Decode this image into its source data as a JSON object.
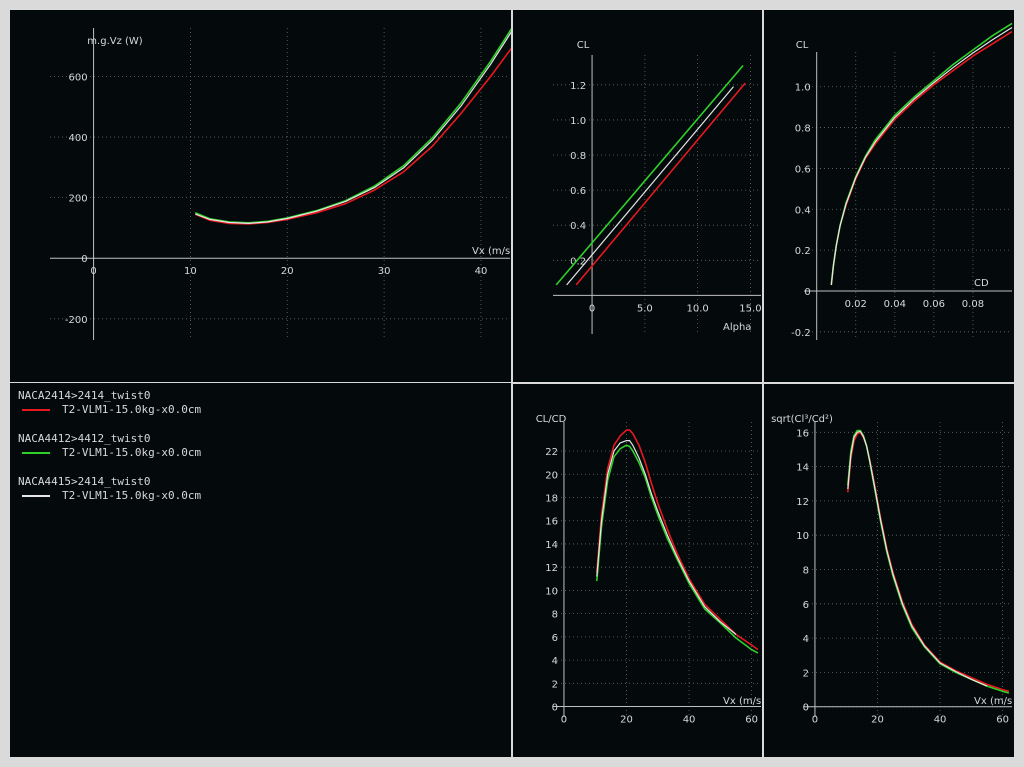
{
  "colors": {
    "background": "#04090c",
    "frame": "#dadada",
    "grid": "#6a6a6a",
    "axis": "#c0c0c0",
    "text": "#d8d8d8"
  },
  "legend": [
    {
      "title": "NACA2414>2414_twist0",
      "label": "T2-VLM1-15.0kg-x0.0cm",
      "color": "#e8191e"
    },
    {
      "title": "NACA4412>4412_twist0",
      "label": "T2-VLM1-15.0kg-x0.0cm",
      "color": "#2ed12a"
    },
    {
      "title": "NACA4415>2414_twist0",
      "label": "T2-VLM1-15.0kg-x0.0cm",
      "color": "#e6e6e6"
    }
  ],
  "chart_data": [
    {
      "id": "power",
      "type": "line",
      "xlabel": "Vx (m/s",
      "ylabel": "m.g.Vz (W)",
      "xlim": [
        -4.5,
        43
      ],
      "ylim": [
        -270,
        760
      ],
      "xticks": [
        0,
        10,
        20,
        30,
        40
      ],
      "yticks": [
        -200,
        0,
        200,
        400,
        600
      ],
      "grid": true,
      "series": [
        {
          "color": "#e8191e",
          "x": [
            10.5,
            12,
            14,
            16,
            18,
            20,
            23,
            26,
            29,
            32,
            35,
            38,
            41,
            44,
            47
          ],
          "y": [
            145,
            125,
            115,
            113,
            118,
            128,
            150,
            180,
            225,
            285,
            370,
            480,
            600,
            730,
            880
          ]
        },
        {
          "color": "#2ed12a",
          "x": [
            10.5,
            12,
            14,
            16,
            18,
            20,
            23,
            26,
            29,
            32,
            35,
            38,
            41,
            44,
            47
          ],
          "y": [
            150,
            130,
            120,
            117,
            122,
            133,
            157,
            190,
            238,
            305,
            398,
            515,
            650,
            800,
            960
          ]
        },
        {
          "color": "#e6e6e6",
          "x": [
            10.5,
            12,
            14,
            16,
            18,
            20,
            23,
            26,
            29,
            32,
            35,
            38,
            41,
            44,
            47
          ],
          "y": [
            146,
            128,
            118,
            115,
            120,
            131,
            155,
            187,
            233,
            298,
            390,
            505,
            640,
            790,
            950
          ]
        }
      ]
    },
    {
      "id": "cl-alpha",
      "type": "line",
      "xlabel": "Alpha",
      "ylabel": "CL",
      "xlim": [
        -3.7,
        16
      ],
      "ylim": [
        -0.22,
        1.37
      ],
      "xticks": [
        0,
        5,
        10,
        15
      ],
      "xtick_labels": [
        "0",
        "5.0",
        "10.0",
        "15.0"
      ],
      "yticks": [
        0.2,
        0.4,
        0.6,
        0.8,
        1.0,
        1.2
      ],
      "ytick_labels": [
        "0.2",
        "0.4",
        "0.6",
        "0.8",
        "1.0",
        "1.2"
      ],
      "grid": true,
      "series": [
        {
          "color": "#e8191e",
          "x": [
            -1.5,
            14.5
          ],
          "y": [
            0.06,
            1.21
          ]
        },
        {
          "color": "#2ed12a",
          "x": [
            -3.4,
            14.3
          ],
          "y": [
            0.06,
            1.31
          ]
        },
        {
          "color": "#e6e6e6",
          "x": [
            -2.4,
            13.4
          ],
          "y": [
            0.06,
            1.19
          ]
        }
      ]
    },
    {
      "id": "cl-cd",
      "type": "line",
      "xlabel": "CD",
      "ylabel": "CL",
      "xlim": [
        -0.0065,
        0.1
      ],
      "ylim": [
        -0.24,
        1.17
      ],
      "xticks": [
        0.02,
        0.04,
        0.06,
        0.08
      ],
      "xtick_labels": [
        "0.02",
        "0.04",
        "0.06",
        "0.08"
      ],
      "yticks": [
        -0.2,
        0,
        0.2,
        0.4,
        0.6,
        0.8,
        1.0
      ],
      "ytick_labels": [
        "-0.2",
        "0",
        "0.2",
        "0.4",
        "0.6",
        "0.8",
        "1.0"
      ],
      "grid": true,
      "series": [
        {
          "color": "#e8191e",
          "x": [
            0.0075,
            0.0085,
            0.01,
            0.012,
            0.015,
            0.02,
            0.025,
            0.03,
            0.04,
            0.05,
            0.06,
            0.07,
            0.08,
            0.09,
            0.1
          ],
          "y": [
            0.03,
            0.12,
            0.22,
            0.32,
            0.42,
            0.55,
            0.65,
            0.72,
            0.84,
            0.93,
            1.01,
            1.08,
            1.15,
            1.21,
            1.27
          ]
        },
        {
          "color": "#2ed12a",
          "x": [
            0.0075,
            0.0085,
            0.01,
            0.012,
            0.015,
            0.02,
            0.025,
            0.03,
            0.04,
            0.05,
            0.06,
            0.07,
            0.08,
            0.09,
            0.1
          ],
          "y": [
            0.03,
            0.12,
            0.22,
            0.32,
            0.43,
            0.56,
            0.66,
            0.74,
            0.86,
            0.95,
            1.03,
            1.11,
            1.18,
            1.25,
            1.31
          ]
        },
        {
          "color": "#e6e6e6",
          "x": [
            0.0075,
            0.0085,
            0.01,
            0.012,
            0.015,
            0.02,
            0.025,
            0.03,
            0.04,
            0.05,
            0.06,
            0.07,
            0.08,
            0.09,
            0.1
          ],
          "y": [
            0.03,
            0.12,
            0.22,
            0.32,
            0.425,
            0.555,
            0.655,
            0.73,
            0.85,
            0.94,
            1.02,
            1.095,
            1.165,
            1.23,
            1.29
          ]
        }
      ]
    },
    {
      "id": "cl-over-cd",
      "type": "line",
      "xlabel": "Vx (m/s",
      "ylabel": "CL/CD",
      "xlim": [
        -3.5,
        63
      ],
      "ylim": [
        -0.9,
        24.5
      ],
      "xticks": [
        0,
        20,
        40,
        60
      ],
      "yticks": [
        0,
        2,
        4,
        6,
        8,
        10,
        12,
        14,
        16,
        18,
        20,
        22
      ],
      "grid": true,
      "series": [
        {
          "color": "#e8191e",
          "x": [
            10.5,
            12,
            14,
            16,
            18,
            20,
            21,
            22,
            24,
            26,
            28,
            30,
            33,
            36,
            40,
            45,
            50,
            55,
            60,
            62
          ],
          "y": [
            11.5,
            16.5,
            20.5,
            22.5,
            23.3,
            23.8,
            23.8,
            23.5,
            22.5,
            21,
            19.2,
            17.5,
            15.3,
            13.3,
            11,
            8.8,
            7.5,
            6.2,
            5.3,
            4.9
          ]
        },
        {
          "color": "#2ed12a",
          "x": [
            10.5,
            12,
            14,
            16,
            18,
            20,
            21,
            22,
            24,
            26,
            28,
            30,
            33,
            36,
            40,
            45,
            50,
            55,
            60,
            62
          ],
          "y": [
            10.8,
            15.5,
            19.5,
            21.5,
            22.2,
            22.5,
            22.4,
            22,
            21,
            19.7,
            18,
            16.5,
            14.5,
            12.8,
            10.6,
            8.4,
            7.2,
            5.9,
            4.9,
            4.6
          ]
        },
        {
          "color": "#e6e6e6",
          "x": [
            10.5,
            12,
            14,
            16,
            18,
            20,
            21,
            22,
            24,
            26,
            28,
            30,
            33,
            36,
            40,
            45,
            50,
            55
          ],
          "y": [
            11.2,
            16,
            20,
            22,
            22.7,
            22.9,
            22.9,
            22.5,
            21.4,
            20,
            18.3,
            16.8,
            14.8,
            13,
            10.8,
            8.6,
            7.3,
            6.2
          ]
        }
      ]
    },
    {
      "id": "sqrt-cl3-cd2",
      "type": "line",
      "xlabel": "Vx (m/s",
      "ylabel": "sqrt(Cl³/Cd²)",
      "xlim": [
        -3.5,
        63
      ],
      "ylim": [
        -0.6,
        16.6
      ],
      "xticks": [
        0,
        20,
        40,
        60
      ],
      "yticks": [
        0,
        2,
        4,
        6,
        8,
        10,
        12,
        14,
        16
      ],
      "grid": true,
      "series": [
        {
          "color": "#e8191e",
          "x": [
            10.5,
            11.5,
            12.5,
            13.5,
            14.5,
            15.5,
            16.5,
            17.5,
            19,
            21,
            23,
            25,
            28,
            31,
            35,
            40,
            45,
            50,
            55,
            60,
            62
          ],
          "y": [
            12.5,
            14.5,
            15.5,
            15.9,
            16,
            15.7,
            15.2,
            14.4,
            13,
            11,
            9.2,
            7.8,
            6.1,
            4.8,
            3.6,
            2.6,
            2.1,
            1.7,
            1.3,
            1,
            0.9
          ]
        },
        {
          "color": "#2ed12a",
          "x": [
            10.5,
            11.5,
            12.5,
            13.5,
            14.5,
            15.5,
            16.5,
            17.5,
            19,
            21,
            23,
            25,
            28,
            31,
            35,
            40,
            45,
            50,
            55,
            60,
            62
          ],
          "y": [
            12.9,
            14.9,
            15.8,
            16.1,
            16.1,
            15.8,
            15.2,
            14.3,
            12.8,
            10.8,
            9,
            7.6,
            5.9,
            4.6,
            3.5,
            2.5,
            2,
            1.6,
            1.2,
            0.9,
            0.8
          ]
        },
        {
          "color": "#e6e6e6",
          "x": [
            10.5,
            11.5,
            12.5,
            13.5,
            14.5,
            15.5,
            16.5,
            17.5,
            19,
            21,
            23,
            25,
            28,
            31,
            35,
            40,
            45,
            50,
            55
          ],
          "y": [
            12.7,
            14.7,
            15.7,
            16,
            16.05,
            15.75,
            15.2,
            14.35,
            12.9,
            10.9,
            9.1,
            7.7,
            6,
            4.7,
            3.55,
            2.55,
            2.05,
            1.6,
            1.2
          ]
        }
      ]
    }
  ]
}
